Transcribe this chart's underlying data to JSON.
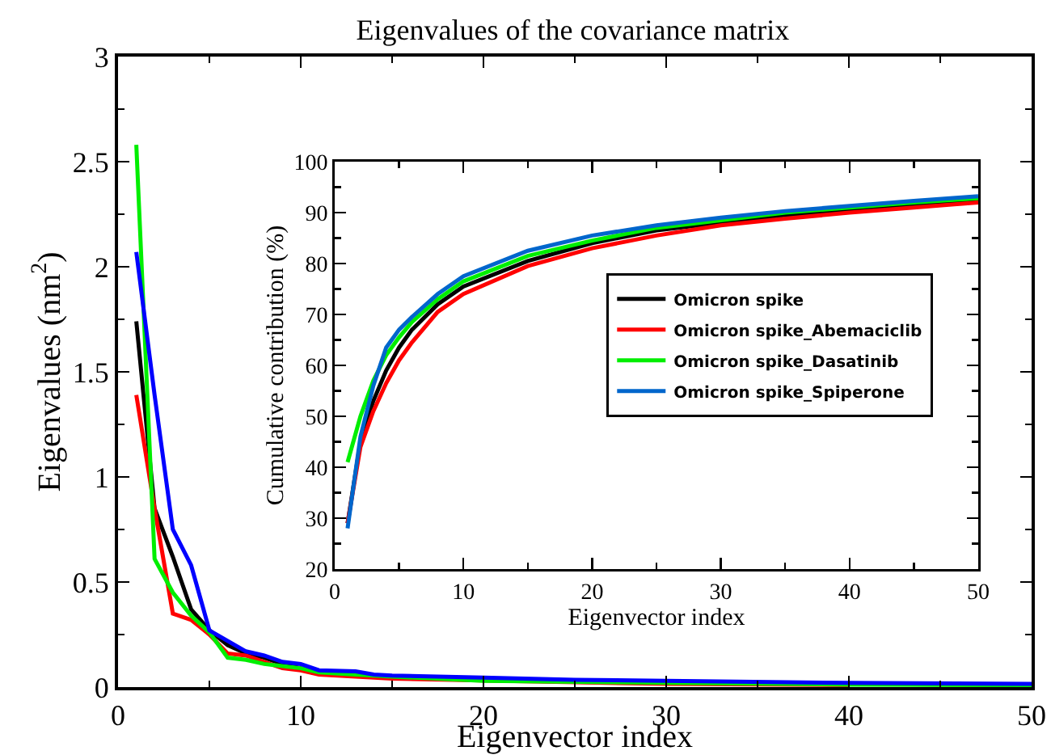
{
  "chart_data": [
    {
      "type": "line",
      "title": "Eigenvalues of the covariance matrix",
      "xlabel": "Eigenvector index",
      "ylabel": "Eigenvalues (nm$^{2}$)",
      "xlim": [
        0,
        50
      ],
      "xticks": [
        0,
        10,
        20,
        30,
        40,
        50
      ],
      "ylim": [
        0,
        3
      ],
      "yticks": [
        0,
        0.5,
        1,
        1.5,
        2,
        2.5,
        3
      ],
      "grid": false,
      "legend": false,
      "marker": "none",
      "line_style": "solid",
      "series": [
        {
          "color": "#000000",
          "x": [
            1,
            2,
            3,
            4,
            5,
            6,
            7,
            8,
            9,
            10,
            11,
            12,
            13,
            15,
            20,
            25,
            30,
            40,
            50
          ],
          "values": [
            1.74,
            0.85,
            0.62,
            0.37,
            0.27,
            0.2,
            0.16,
            0.14,
            0.11,
            0.09,
            0.07,
            0.065,
            0.06,
            0.05,
            0.035,
            0.025,
            0.02,
            0.015,
            0.01
          ]
        },
        {
          "color": "#ff0000",
          "x": [
            1,
            2,
            3,
            4,
            5,
            6,
            7,
            8,
            9,
            10,
            11,
            13,
            15,
            30,
            40
          ],
          "values": [
            1.39,
            0.85,
            0.35,
            0.32,
            0.25,
            0.16,
            0.15,
            0.12,
            0.09,
            0.08,
            0.06,
            0.05,
            0.04,
            0.015,
            0.01
          ]
        },
        {
          "color": "#00ee00",
          "x": [
            1,
            2,
            3,
            4,
            5,
            6,
            7,
            8,
            9,
            10,
            11,
            13,
            15,
            20,
            30,
            40,
            50
          ],
          "values": [
            2.58,
            0.61,
            0.45,
            0.34,
            0.26,
            0.14,
            0.13,
            0.11,
            0.1,
            0.09,
            0.07,
            0.06,
            0.05,
            0.03,
            0.02,
            0.012,
            0.01
          ]
        },
        {
          "color": "#0000ff",
          "x": [
            1,
            2,
            3,
            4,
            5,
            6,
            7,
            8,
            9,
            10,
            11,
            13,
            14,
            15,
            20,
            25,
            30,
            40,
            50
          ],
          "values": [
            2.07,
            1.39,
            0.75,
            0.58,
            0.27,
            0.22,
            0.17,
            0.15,
            0.12,
            0.11,
            0.08,
            0.075,
            0.06,
            0.055,
            0.045,
            0.035,
            0.03,
            0.02,
            0.015
          ]
        }
      ]
    },
    {
      "type": "line",
      "xlabel": "Eigenvector index",
      "ylabel": "Cumulative contribution (%)",
      "xlim": [
        0,
        50
      ],
      "xticks": [
        0,
        10,
        20,
        30,
        40,
        50
      ],
      "ylim": [
        20,
        100
      ],
      "yticks": [
        20,
        30,
        40,
        50,
        60,
        70,
        80,
        90,
        100
      ],
      "grid": false,
      "legend": "right",
      "marker": "none",
      "line_style": "solid",
      "series": [
        {
          "name": "Omicron spike",
          "color": "#000000",
          "x": [
            1,
            2,
            3,
            4,
            5,
            6,
            8,
            10,
            15,
            20,
            25,
            30,
            35,
            40,
            45,
            50
          ],
          "values": [
            29,
            45,
            53,
            59,
            63.5,
            67,
            72,
            75.5,
            80.5,
            84,
            86.5,
            88,
            89.5,
            90.5,
            91.5,
            92.5
          ]
        },
        {
          "name": "Omicron spike_Abemaciclib",
          "color": "#ff0000",
          "x": [
            1,
            2,
            3,
            4,
            5,
            6,
            8,
            10,
            15,
            20,
            25,
            30,
            35,
            40,
            45,
            50
          ],
          "values": [
            29,
            44,
            51,
            56.5,
            61,
            64.5,
            70.5,
            74,
            79.5,
            83,
            85.5,
            87.5,
            88.8,
            90,
            91,
            92
          ]
        },
        {
          "name": "Omicron spike_Dasatinib",
          "color": "#00ee00",
          "x": [
            1,
            2,
            3,
            4,
            5,
            6,
            8,
            10,
            15,
            20,
            25,
            30,
            35,
            40,
            45,
            50
          ],
          "values": [
            41,
            50,
            57,
            62,
            65.5,
            68.5,
            73,
            76.5,
            81.5,
            84.5,
            87,
            88.5,
            90,
            91,
            92,
            92.8
          ]
        },
        {
          "name": "Omicron spike_Spiperone",
          "color": "#0066cc",
          "x": [
            1,
            2,
            3,
            4,
            5,
            6,
            8,
            10,
            15,
            20,
            25,
            30,
            35,
            40,
            45,
            50
          ],
          "values": [
            28,
            46,
            56,
            63.5,
            67,
            69.5,
            74,
            77.5,
            82.5,
            85.5,
            87.5,
            89,
            90.3,
            91.3,
            92.3,
            93.2
          ]
        }
      ]
    }
  ]
}
